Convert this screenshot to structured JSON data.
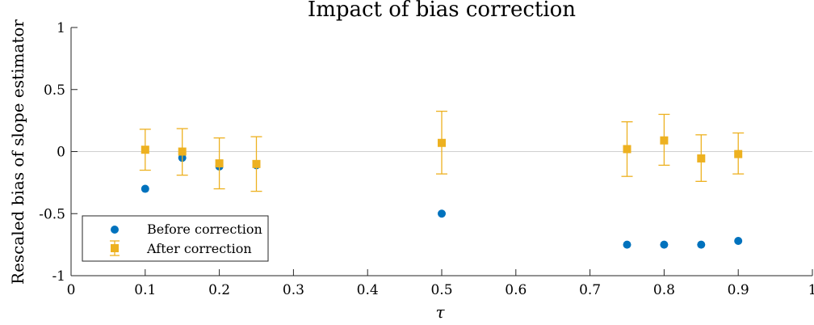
{
  "chart_data": {
    "type": "scatter",
    "title": "Impact of bias correction",
    "xlabel": "τ",
    "ylabel": "Rescaled bias of slope estimator",
    "xlim": [
      0,
      1
    ],
    "ylim": [
      -1,
      1
    ],
    "xticks": [
      0,
      0.1,
      0.2,
      0.3,
      0.4,
      0.5,
      0.6,
      0.7,
      0.8,
      0.9,
      1
    ],
    "xtick_labels": [
      "0",
      "0.1",
      "0.2",
      "0.3",
      "0.4",
      "0.5",
      "0.6",
      "0.7",
      "0.8",
      "0.9",
      "1"
    ],
    "yticks": [
      1,
      0.5,
      0,
      -0.5,
      -1
    ],
    "ytick_labels": [
      "1",
      "0.5",
      "0",
      "-0.5",
      "-1"
    ],
    "grid": false,
    "reference_line_y": 0,
    "legend_position": "bottom-left",
    "series": [
      {
        "name": "Before correction",
        "marker": "circle",
        "color": "#0072BD",
        "x": [
          0.1,
          0.15,
          0.2,
          0.25,
          0.5,
          0.75,
          0.8,
          0.85,
          0.9
        ],
        "y": [
          -0.3,
          -0.05,
          -0.12,
          -0.11,
          -0.5,
          -0.75,
          -0.75,
          -0.75,
          -0.72
        ]
      },
      {
        "name": "After correction",
        "marker": "square",
        "color": "#EDB120",
        "x": [
          0.1,
          0.15,
          0.2,
          0.25,
          0.5,
          0.75,
          0.8,
          0.85,
          0.9
        ],
        "y": [
          0.015,
          0.0,
          -0.095,
          -0.1,
          0.07,
          0.02,
          0.09,
          -0.055,
          -0.02
        ],
        "err_low": [
          -0.15,
          -0.19,
          -0.3,
          -0.32,
          -0.18,
          -0.2,
          -0.11,
          -0.24,
          -0.18
        ],
        "err_high": [
          0.18,
          0.185,
          0.11,
          0.12,
          0.325,
          0.24,
          0.3,
          0.135,
          0.15
        ]
      }
    ]
  }
}
